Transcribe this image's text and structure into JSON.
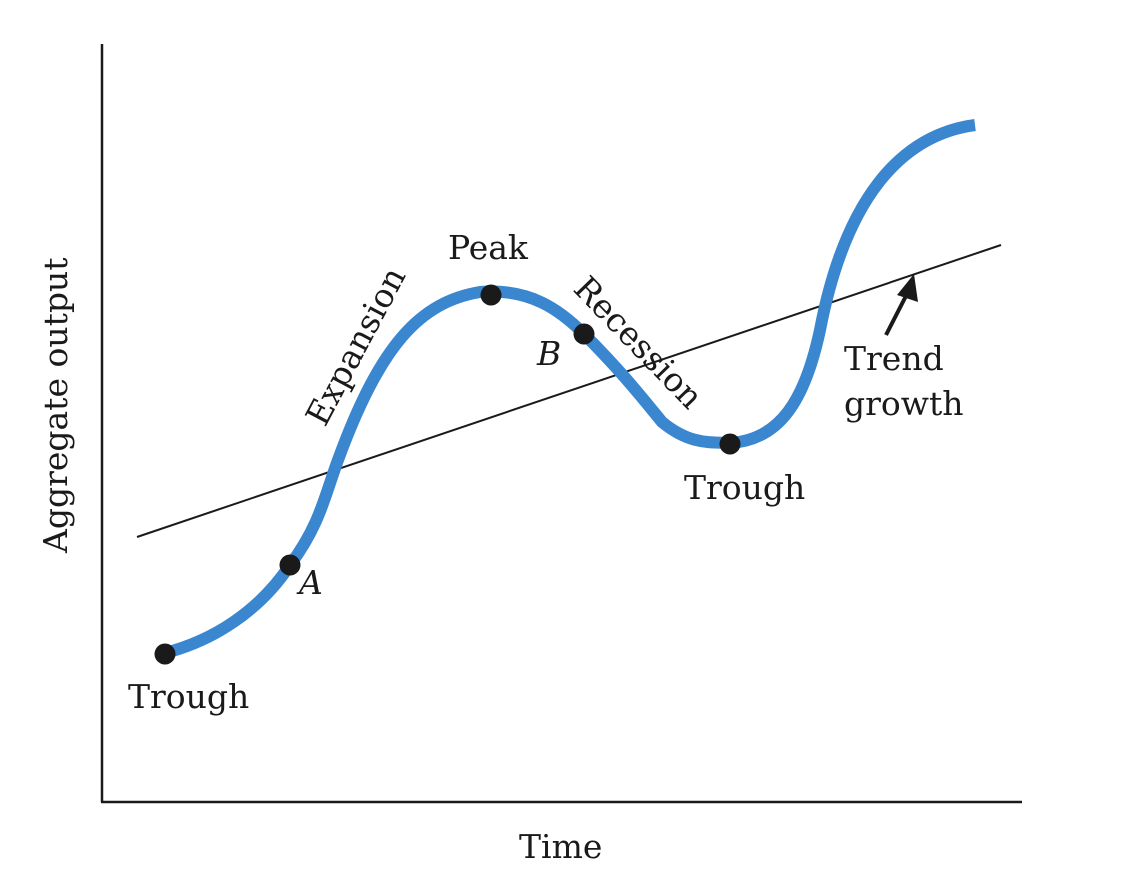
{
  "diagram": {
    "axes": {
      "x_label": "Time",
      "y_label": "Aggregate output"
    },
    "curve": {
      "color": "#3a86cf"
    },
    "trend_line": {
      "color": "#1a1a1a"
    },
    "points": {
      "trough_1": {
        "label": "Trough"
      },
      "point_a": {
        "label": "A"
      },
      "peak": {
        "label": "Peak"
      },
      "point_b": {
        "label": "B"
      },
      "trough_2": {
        "label": "Trough"
      }
    },
    "phases": {
      "expansion": "Expansion",
      "recession": "Recession"
    },
    "trend_label": {
      "line1": "Trend",
      "line2": "growth"
    }
  }
}
